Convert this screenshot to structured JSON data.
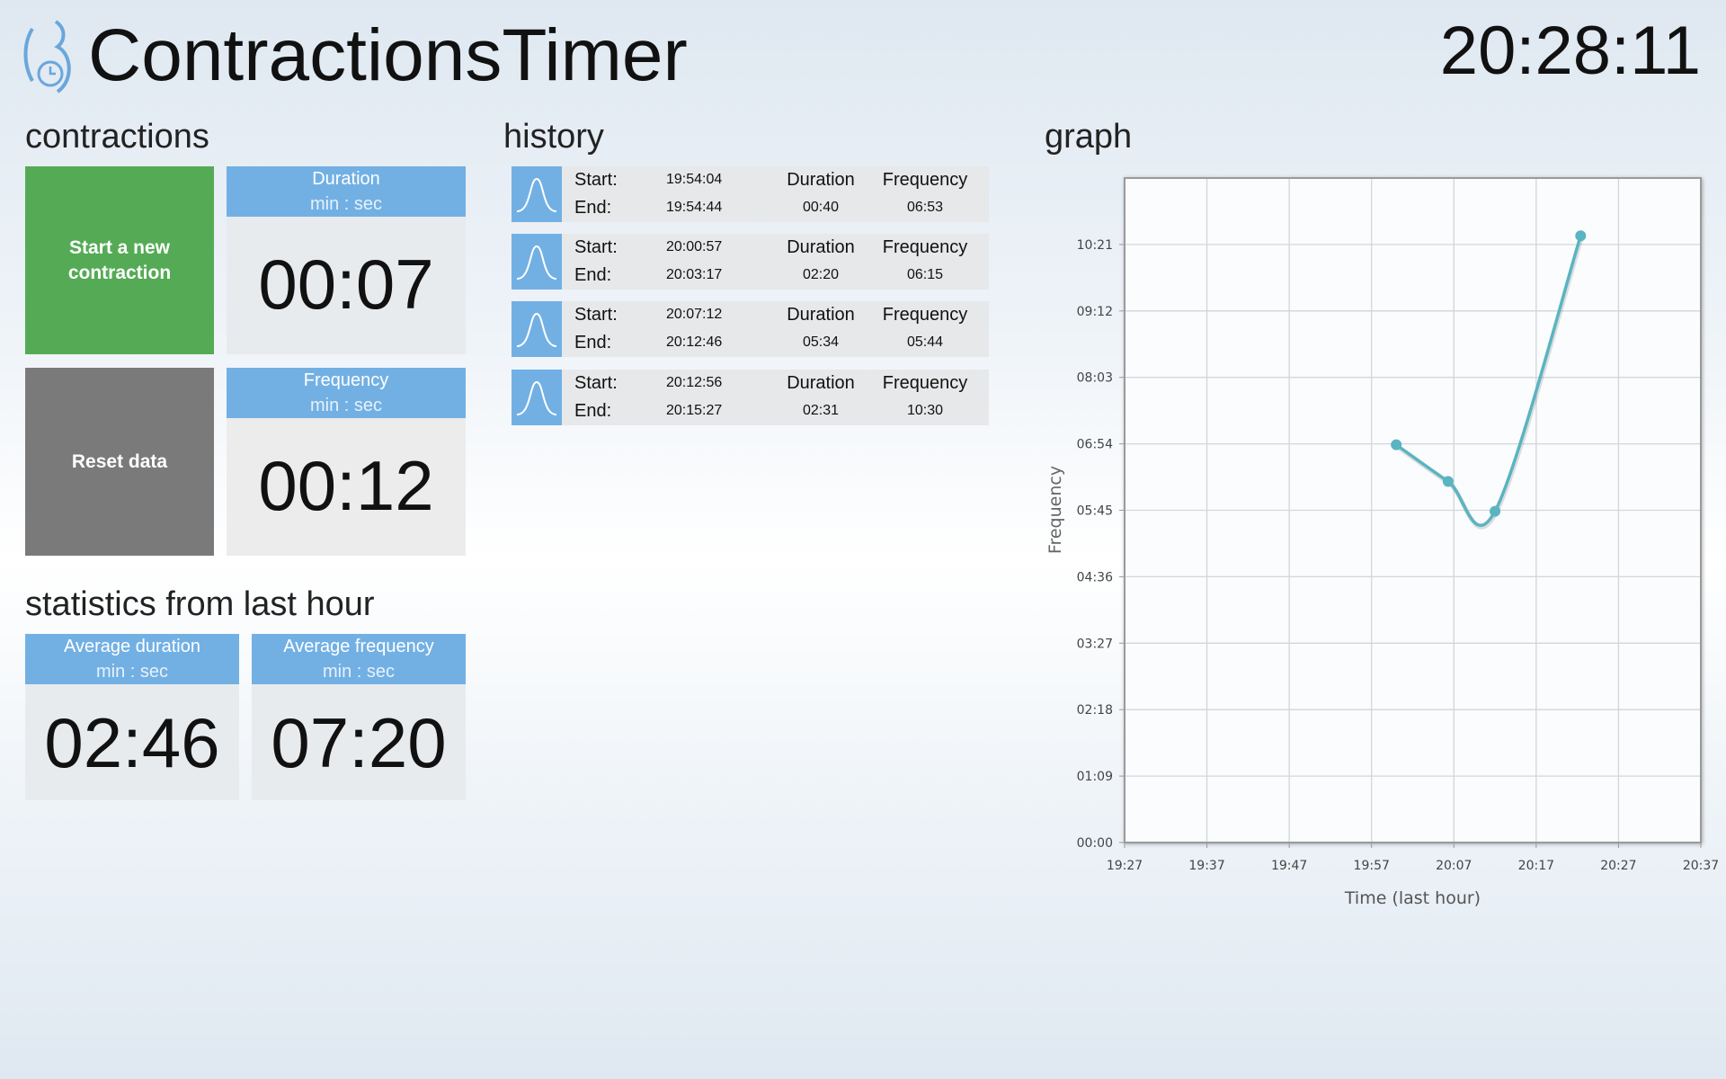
{
  "app": {
    "title": "ContractionsTimer",
    "clock": "20:28:11"
  },
  "contractions": {
    "heading": "contractions",
    "start_button": "Start a new contraction",
    "reset_button": "Reset data",
    "duration": {
      "label": "Duration",
      "unit": "min : sec",
      "value": "00:07"
    },
    "frequency": {
      "label": "Frequency",
      "unit": "min : sec",
      "value": "00:12"
    }
  },
  "statistics": {
    "heading": "statistics from last hour",
    "average_duration": {
      "label": "Average duration",
      "unit": "min : sec",
      "value": "02:46"
    },
    "average_frequency": {
      "label": "Average frequency",
      "unit": "min : sec",
      "value": "07:20"
    }
  },
  "history": {
    "heading": "history",
    "start_label": "Start:",
    "end_label": "End:",
    "duration_label": "Duration",
    "frequency_label": "Frequency",
    "rows": [
      {
        "start": "19:54:04",
        "end": "19:54:44",
        "duration": "00:40",
        "frequency": "06:53"
      },
      {
        "start": "20:00:57",
        "end": "20:03:17",
        "duration": "02:20",
        "frequency": "06:15"
      },
      {
        "start": "20:07:12",
        "end": "20:12:46",
        "duration": "05:34",
        "frequency": "05:44"
      },
      {
        "start": "20:12:56",
        "end": "20:15:27",
        "duration": "02:31",
        "frequency": "10:30"
      }
    ]
  },
  "chart_data": {
    "type": "line",
    "title": "graph",
    "x_label": "Time (last hour)",
    "y_label": "Frequency",
    "x": [
      1200,
      1206.3,
      1212,
      1222.4
    ],
    "values": [
      413,
      375,
      344,
      630
    ],
    "color": "#5ab4c1",
    "xlim": [
      1167,
      1237
    ],
    "xticks": [
      {
        "value": 1167,
        "label": "19:27"
      },
      {
        "value": 1177,
        "label": "19:37"
      },
      {
        "value": 1187,
        "label": "19:47"
      },
      {
        "value": 1197,
        "label": "19:57"
      },
      {
        "value": 1207,
        "label": "20:07"
      },
      {
        "value": 1217,
        "label": "20:17"
      },
      {
        "value": 1227,
        "label": "20:27"
      },
      {
        "value": 1237,
        "label": "20:37"
      }
    ],
    "ylim": [
      0,
      690
    ],
    "yticks": [
      {
        "value": 0,
        "label": "00:00"
      },
      {
        "value": 69,
        "label": "01:09"
      },
      {
        "value": 138,
        "label": "02:18"
      },
      {
        "value": 207,
        "label": "03:27"
      },
      {
        "value": 276,
        "label": "04:36"
      },
      {
        "value": 345,
        "label": "05:45"
      },
      {
        "value": 414,
        "label": "06:54"
      },
      {
        "value": 483,
        "label": "08:03"
      },
      {
        "value": 552,
        "label": "09:12"
      },
      {
        "value": 621,
        "label": "10:21"
      }
    ],
    "grid": true
  }
}
